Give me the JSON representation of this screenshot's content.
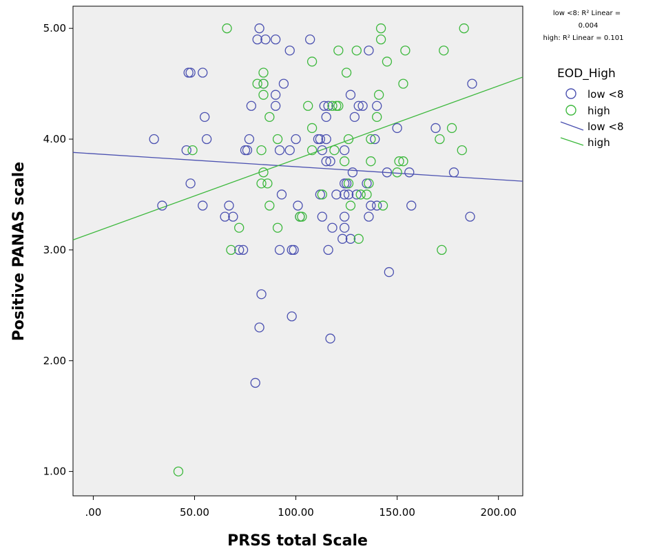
{
  "chart_data": {
    "type": "scatter",
    "xlabel": "PRSS total Scale",
    "ylabel": "Positive PANAS scale",
    "xlim": [
      -10,
      212
    ],
    "ylim": [
      0.78,
      5.2
    ],
    "xticks": [
      0,
      50,
      100,
      150,
      200
    ],
    "xtick_labels": [
      ".00",
      "50.00",
      "100.00",
      "150.00",
      "200.00"
    ],
    "yticks": [
      1,
      2,
      3,
      4,
      5
    ],
    "ytick_labels": [
      "1.00",
      "2.00",
      "3.00",
      "4.00",
      "5.00"
    ],
    "background": "#efefef",
    "grid": false,
    "legend": {
      "position": "right",
      "title": "EOD_High",
      "items": [
        {
          "label": "low <8",
          "kind": "marker",
          "color": "#4a50b0"
        },
        {
          "label": "high",
          "kind": "marker",
          "color": "#3cb83c"
        },
        {
          "label": "low <8",
          "kind": "line",
          "color": "#4a50b0"
        },
        {
          "label": "high",
          "kind": "line",
          "color": "#3cb83c"
        }
      ]
    },
    "annotations": {
      "r2_lines": [
        "low <8: R² Linear =",
        "0.004",
        "high: R² Linear = 0.101"
      ]
    },
    "series": [
      {
        "name": "low <8",
        "color": "#4a50b0",
        "points": [
          [
            82,
            5.0
          ],
          [
            81,
            4.9
          ],
          [
            85,
            4.9
          ],
          [
            90,
            4.9
          ],
          [
            97,
            4.8
          ],
          [
            107,
            4.9
          ],
          [
            136,
            4.8
          ],
          [
            47,
            4.6
          ],
          [
            48,
            4.6
          ],
          [
            54,
            4.6
          ],
          [
            84,
            4.5
          ],
          [
            94,
            4.5
          ],
          [
            187,
            4.5
          ],
          [
            90,
            4.4
          ],
          [
            127,
            4.4
          ],
          [
            78,
            4.3
          ],
          [
            90,
            4.3
          ],
          [
            114,
            4.3
          ],
          [
            116,
            4.3
          ],
          [
            131,
            4.3
          ],
          [
            133,
            4.3
          ],
          [
            140,
            4.3
          ],
          [
            55,
            4.2
          ],
          [
            115,
            4.2
          ],
          [
            129,
            4.2
          ],
          [
            150,
            4.1
          ],
          [
            169,
            4.1
          ],
          [
            30,
            4.0
          ],
          [
            56,
            4.0
          ],
          [
            77,
            4.0
          ],
          [
            100,
            4.0
          ],
          [
            111,
            4.0
          ],
          [
            112,
            4.0
          ],
          [
            115,
            4.0
          ],
          [
            139,
            4.0
          ],
          [
            46,
            3.9
          ],
          [
            75,
            3.9
          ],
          [
            76,
            3.9
          ],
          [
            92,
            3.9
          ],
          [
            97,
            3.9
          ],
          [
            113,
            3.9
          ],
          [
            124,
            3.9
          ],
          [
            115,
            3.8
          ],
          [
            117,
            3.8
          ],
          [
            128,
            3.7
          ],
          [
            145,
            3.7
          ],
          [
            156,
            3.7
          ],
          [
            178,
            3.7
          ],
          [
            48,
            3.6
          ],
          [
            124,
            3.6
          ],
          [
            125,
            3.6
          ],
          [
            135,
            3.6
          ],
          [
            93,
            3.5
          ],
          [
            112,
            3.5
          ],
          [
            120,
            3.5
          ],
          [
            124,
            3.5
          ],
          [
            126,
            3.5
          ],
          [
            130,
            3.5
          ],
          [
            34,
            3.4
          ],
          [
            54,
            3.4
          ],
          [
            67,
            3.4
          ],
          [
            101,
            3.4
          ],
          [
            137,
            3.4
          ],
          [
            140,
            3.4
          ],
          [
            157,
            3.4
          ],
          [
            65,
            3.3
          ],
          [
            69,
            3.3
          ],
          [
            102,
            3.3
          ],
          [
            113,
            3.3
          ],
          [
            124,
            3.3
          ],
          [
            136,
            3.3
          ],
          [
            186,
            3.3
          ],
          [
            118,
            3.2
          ],
          [
            124,
            3.2
          ],
          [
            123,
            3.1
          ],
          [
            127,
            3.1
          ],
          [
            72,
            3.0
          ],
          [
            74,
            3.0
          ],
          [
            92,
            3.0
          ],
          [
            98,
            3.0
          ],
          [
            99,
            3.0
          ],
          [
            116,
            3.0
          ],
          [
            146,
            2.8
          ],
          [
            83,
            2.6
          ],
          [
            98,
            2.4
          ],
          [
            82,
            2.3
          ],
          [
            117,
            2.2
          ],
          [
            80,
            1.8
          ]
        ],
        "trend": {
          "x": [
            -10,
            212
          ],
          "y": [
            3.88,
            3.62
          ]
        }
      },
      {
        "name": "high",
        "color": "#3cb83c",
        "points": [
          [
            66,
            5.0
          ],
          [
            142,
            5.0
          ],
          [
            183,
            5.0
          ],
          [
            142,
            4.9
          ],
          [
            121,
            4.8
          ],
          [
            130,
            4.8
          ],
          [
            154,
            4.8
          ],
          [
            173,
            4.8
          ],
          [
            108,
            4.7
          ],
          [
            145,
            4.7
          ],
          [
            84,
            4.6
          ],
          [
            125,
            4.6
          ],
          [
            81,
            4.5
          ],
          [
            84,
            4.5
          ],
          [
            153,
            4.5
          ],
          [
            84,
            4.4
          ],
          [
            141,
            4.4
          ],
          [
            106,
            4.3
          ],
          [
            118,
            4.3
          ],
          [
            120,
            4.3
          ],
          [
            121,
            4.3
          ],
          [
            87,
            4.2
          ],
          [
            140,
            4.2
          ],
          [
            108,
            4.1
          ],
          [
            177,
            4.1
          ],
          [
            91,
            4.0
          ],
          [
            126,
            4.0
          ],
          [
            137,
            4.0
          ],
          [
            171,
            4.0
          ],
          [
            49,
            3.9
          ],
          [
            83,
            3.9
          ],
          [
            108,
            3.9
          ],
          [
            119,
            3.9
          ],
          [
            182,
            3.9
          ],
          [
            124,
            3.8
          ],
          [
            137,
            3.8
          ],
          [
            151,
            3.8
          ],
          [
            153,
            3.8
          ],
          [
            84,
            3.7
          ],
          [
            150,
            3.7
          ],
          [
            83,
            3.6
          ],
          [
            86,
            3.6
          ],
          [
            126,
            3.6
          ],
          [
            136,
            3.6
          ],
          [
            113,
            3.5
          ],
          [
            132,
            3.5
          ],
          [
            135,
            3.5
          ],
          [
            87,
            3.4
          ],
          [
            127,
            3.4
          ],
          [
            143,
            3.4
          ],
          [
            102,
            3.3
          ],
          [
            103,
            3.3
          ],
          [
            72,
            3.2
          ],
          [
            91,
            3.2
          ],
          [
            131,
            3.1
          ],
          [
            68,
            3.0
          ],
          [
            172,
            3.0
          ],
          [
            42,
            1.0
          ]
        ],
        "trend": {
          "x": [
            -10,
            212
          ],
          "y": [
            3.09,
            4.56
          ]
        }
      }
    ]
  }
}
